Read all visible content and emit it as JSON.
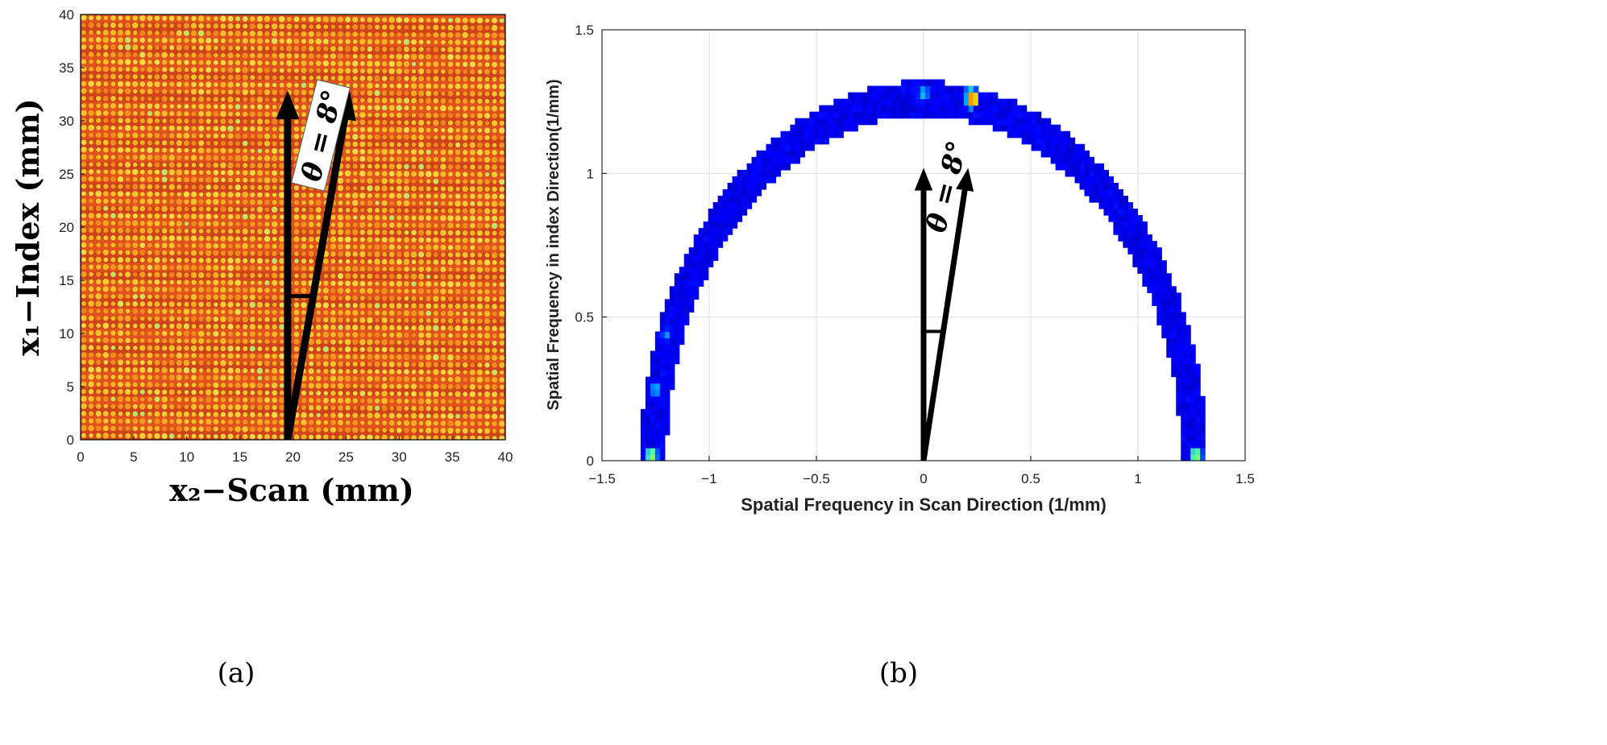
{
  "panel_labels": [
    "(a)",
    "(b)"
  ],
  "chart_data": [
    {
      "type": "heatmap",
      "panel": "a",
      "xlabel": "x₂−Scan (mm)",
      "ylabel": "x₁−Index (mm)",
      "xlim": [
        0,
        40
      ],
      "ylim": [
        0,
        40
      ],
      "xticks": [
        0,
        5,
        10,
        15,
        20,
        25,
        30,
        35,
        40
      ],
      "yticks": [
        0,
        5,
        10,
        15,
        20,
        25,
        30,
        35,
        40
      ],
      "colormap": [
        "#8b1a10",
        "#c0361a",
        "#e0521c",
        "#f58a20",
        "#fbd027",
        "#fff44a",
        "#b8ff7a"
      ],
      "pattern": "periodic grid of bright dots, rows tilted by 8 degrees",
      "arrows": {
        "origin": [
          19.5,
          0
        ],
        "vertical_tip": [
          19.5,
          31.5
        ],
        "tilted_tip": [
          25.1,
          31.5
        ],
        "arc_y": 13.5
      },
      "annotation": "θ = 8°"
    },
    {
      "type": "heatmap",
      "panel": "b",
      "xlabel": "Spatial Frequency in Scan Direction (1/mm)",
      "ylabel": "Spatial Frequency in index Direction(1/mm)",
      "xlim": [
        -1.5,
        1.5
      ],
      "ylim": [
        0,
        1.5
      ],
      "xticks": [
        -1.5,
        -1,
        -0.5,
        0,
        0.5,
        1,
        1.5
      ],
      "yticks": [
        0,
        0.5,
        1,
        1.5
      ],
      "grid": true,
      "ring_radius_inner": 1.2,
      "ring_radius_outer": 1.32,
      "hotspots": [
        {
          "x": 0.23,
          "y": 1.26,
          "intensity": 1.0
        },
        {
          "x": 0.22,
          "y": 1.28,
          "intensity": 0.55
        },
        {
          "x": 0.0,
          "y": 1.28,
          "intensity": 0.45
        },
        {
          "x": -1.27,
          "y": 0.02,
          "intensity": 0.7
        },
        {
          "x": 1.27,
          "y": 0.02,
          "intensity": 0.7
        },
        {
          "x": -1.25,
          "y": 0.25,
          "intensity": 0.45
        },
        {
          "x": -1.2,
          "y": 0.44,
          "intensity": 0.35
        }
      ],
      "colormap": [
        "#00008f",
        "#0000ff",
        "#00a0ff",
        "#60ffa0",
        "#ffd000",
        "#ff2000",
        "#a00000"
      ],
      "arrows": {
        "origin": [
          0,
          0
        ],
        "vertical_tip": [
          0,
          0.98
        ],
        "tilted_tip": [
          0.2,
          0.98
        ],
        "arc_y": 0.45
      },
      "annotation": "θ = 8°"
    }
  ]
}
